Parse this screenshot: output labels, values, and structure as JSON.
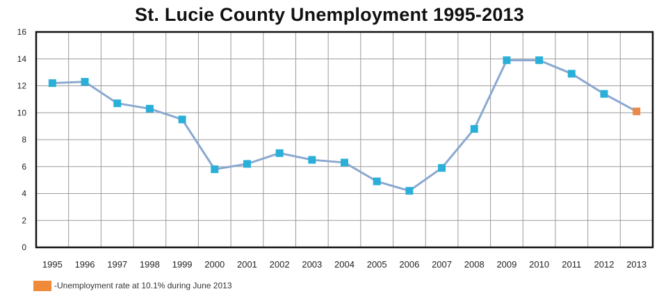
{
  "chart_data": {
    "type": "line",
    "title": "St. Lucie County Unemployment 1995-2013",
    "xlabel": "",
    "ylabel": "",
    "ylim": [
      0,
      16
    ],
    "yticks": [
      0,
      2,
      4,
      6,
      8,
      10,
      12,
      14,
      16
    ],
    "grid": true,
    "categories": [
      "1995",
      "1996",
      "1997",
      "1998",
      "1999",
      "2000",
      "2001",
      "2002",
      "2003",
      "2004",
      "2005",
      "2006",
      "2007",
      "2008",
      "2009",
      "2010",
      "2011",
      "2012",
      "2013"
    ],
    "series": [
      {
        "values": [
          12.2,
          12.3,
          10.7,
          10.3,
          9.5,
          5.8,
          6.2,
          7.0,
          6.5,
          6.3,
          4.9,
          4.2,
          5.9,
          8.8,
          13.9,
          13.9,
          12.9,
          11.4,
          10.1
        ],
        "line_color": "#8aa8d0",
        "marker_color": "#2ab0d8",
        "highlight_index": 18,
        "highlight_color": "#e88a4a"
      }
    ],
    "legend": {
      "position": "bottom-left",
      "swatch_color": "#f08a38",
      "text": "-Unemployment rate at 10.1% during June 2013"
    }
  }
}
